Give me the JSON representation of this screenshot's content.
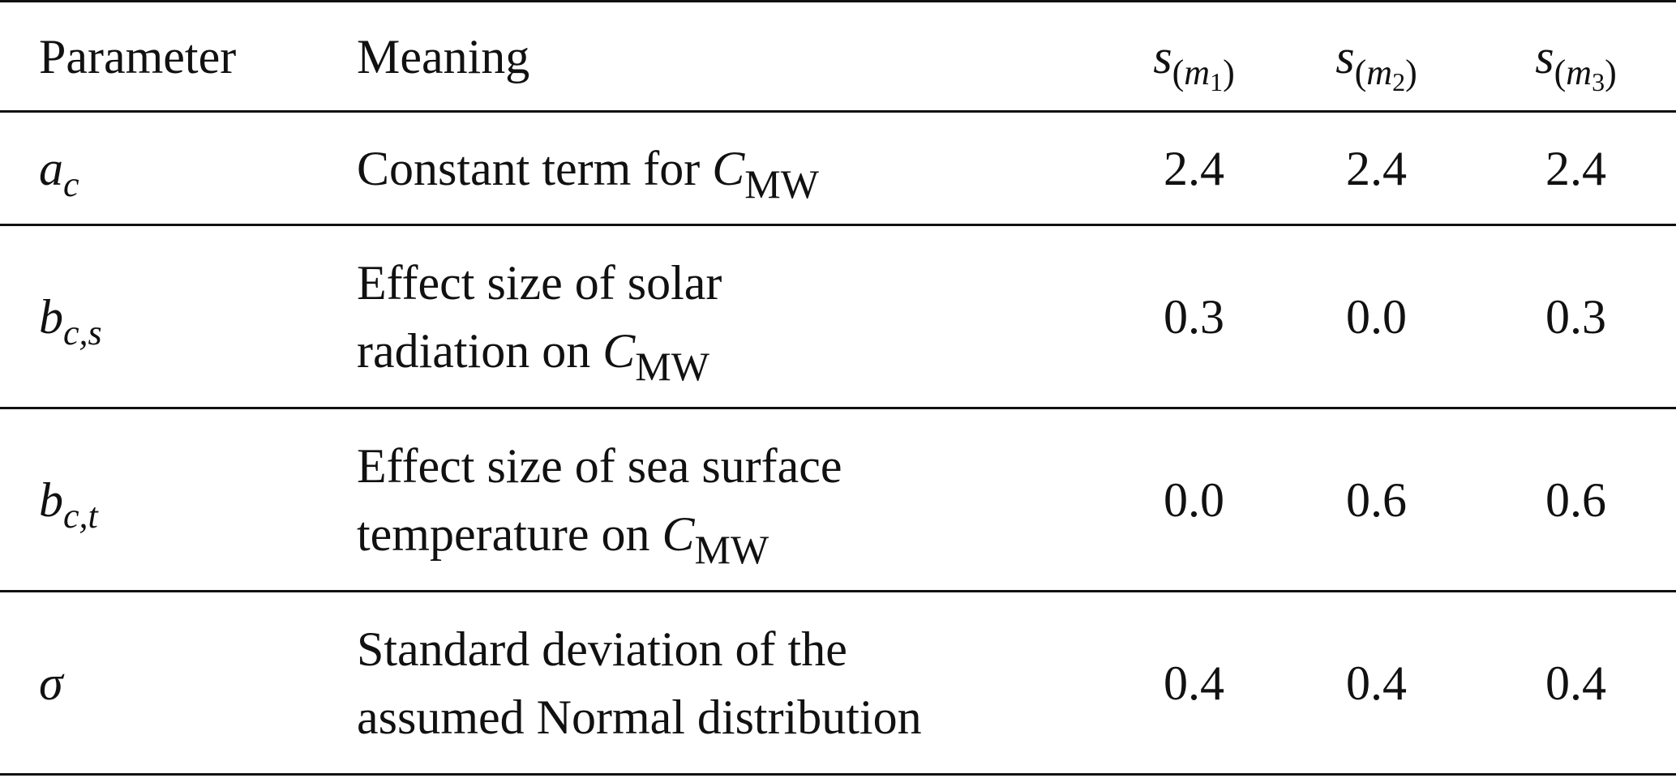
{
  "table": {
    "headers": {
      "parameter": "Parameter",
      "meaning": "Meaning",
      "s_base": "s",
      "m_letter": "m",
      "model_indices": [
        "1",
        "2",
        "3"
      ]
    },
    "mw_subscript": "MW",
    "c_symbol": "C",
    "rows": [
      {
        "param_base": "a",
        "param_sub": "c",
        "meaning_lines": [
          "Constant term for "
        ],
        "values": [
          "2.4",
          "2.4",
          "2.4"
        ]
      },
      {
        "param_base": "b",
        "param_sub": "c,s",
        "meaning_lines": [
          "Effect size of solar",
          "radiation on "
        ],
        "values": [
          "0.3",
          "0.0",
          "0.3"
        ]
      },
      {
        "param_base": "b",
        "param_sub": "c,t",
        "meaning_lines": [
          "Effect size of sea surface",
          "temperature on "
        ],
        "values": [
          "0.0",
          "0.6",
          "0.6"
        ]
      },
      {
        "param_base": "σ",
        "param_sub": "",
        "meaning_lines": [
          "Standard deviation of the",
          "assumed Normal distribution"
        ],
        "values": [
          "0.4",
          "0.4",
          "0.4"
        ]
      }
    ]
  }
}
